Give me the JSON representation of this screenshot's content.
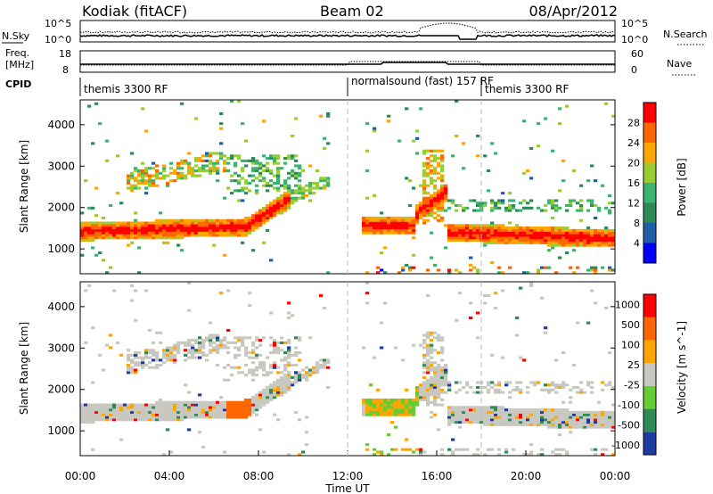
{
  "header": {
    "station": "Kodiak (fitACF)",
    "beam": "Beam 02",
    "date": "08/Apr/2012"
  },
  "noise_panel": {
    "left_label": "N.Sky",
    "right_label": "N.Search",
    "left_ticks": [
      "10^5",
      "10^0"
    ],
    "right_ticks": [
      "10^5",
      "10^0"
    ]
  },
  "freq_panel": {
    "left_label_line1": "Freq.",
    "left_label_line2": "[MHz]",
    "right_label": "Nave",
    "left_ticks": [
      "8",
      "18"
    ],
    "right_ticks": [
      "60",
      "0"
    ]
  },
  "cpid_panel": {
    "label": "CPID",
    "segments": [
      {
        "text": "themis 3300 RF",
        "start_hour": 0
      },
      {
        "text": "normalsound (fast) 157 RF",
        "start_hour": 12
      },
      {
        "text": "themis 3300 RF",
        "start_hour": 18
      }
    ]
  },
  "colors": {
    "power_scale": [
      "#0000ff",
      "#1f5fa8",
      "#2e8b57",
      "#3cb371",
      "#9acd32",
      "#ffa500",
      "#ff6600",
      "#ff0000"
    ],
    "velocity_scale": [
      "#1e3ca0",
      "#2e8b57",
      "#66cc33",
      "#c8c8c0",
      "#ffa500",
      "#ff6600",
      "#ff0000"
    ]
  },
  "chart_data": [
    {
      "type": "heatmap",
      "parameter": "power",
      "ylabel": "Slant Range [km]",
      "yticks": [
        1000,
        2000,
        3000,
        4000
      ],
      "ylim": [
        400,
        4600
      ],
      "xlim_hours": [
        0,
        24
      ],
      "colorbar_label": "Power [dB]",
      "colorbar_ticks": [
        4,
        8,
        12,
        16,
        20,
        24,
        28
      ],
      "colorbar_range": [
        0,
        30
      ],
      "features": [
        {
          "name": "main band",
          "x_hours": [
            0,
            7.6
          ],
          "range_km": [
            1250,
            1600
          ],
          "level": "high"
        },
        {
          "name": "upper arc",
          "x_hours": [
            2,
            6.5
          ],
          "range_km": [
            2000,
            3300
          ],
          "level": "medium"
        },
        {
          "name": "morning rise",
          "x_hours": [
            7,
            10.5
          ],
          "range_km": [
            1400,
            3300
          ],
          "level": "medium"
        },
        {
          "name": "post-noon patch",
          "x_hours": [
            12.8,
            14.5
          ],
          "range_km": [
            1300,
            1900
          ],
          "level": "high"
        },
        {
          "name": "spike",
          "x_hours": [
            15.5,
            16.5
          ],
          "range_km": [
            1500,
            3400
          ],
          "level": "medium"
        },
        {
          "name": "evening band",
          "x_hours": [
            16.3,
            24
          ],
          "range_km": [
            1100,
            1700
          ],
          "level": "high"
        }
      ]
    },
    {
      "type": "heatmap",
      "parameter": "velocity",
      "ylabel": "Slant Range [km]",
      "yticks": [
        1000,
        2000,
        3000,
        4000
      ],
      "ylim": [
        400,
        4600
      ],
      "xlim_hours": [
        0,
        24
      ],
      "xticks": [
        "00:00",
        "04:00",
        "08:00",
        "12:00",
        "16:00",
        "20:00",
        "00:00"
      ],
      "xlabel": "Time UT",
      "colorbar_label": "Velocity [m s^-1]",
      "colorbar_ticks": [
        1000,
        500,
        100,
        25,
        -25,
        -100,
        -500,
        -1000
      ]
    }
  ]
}
